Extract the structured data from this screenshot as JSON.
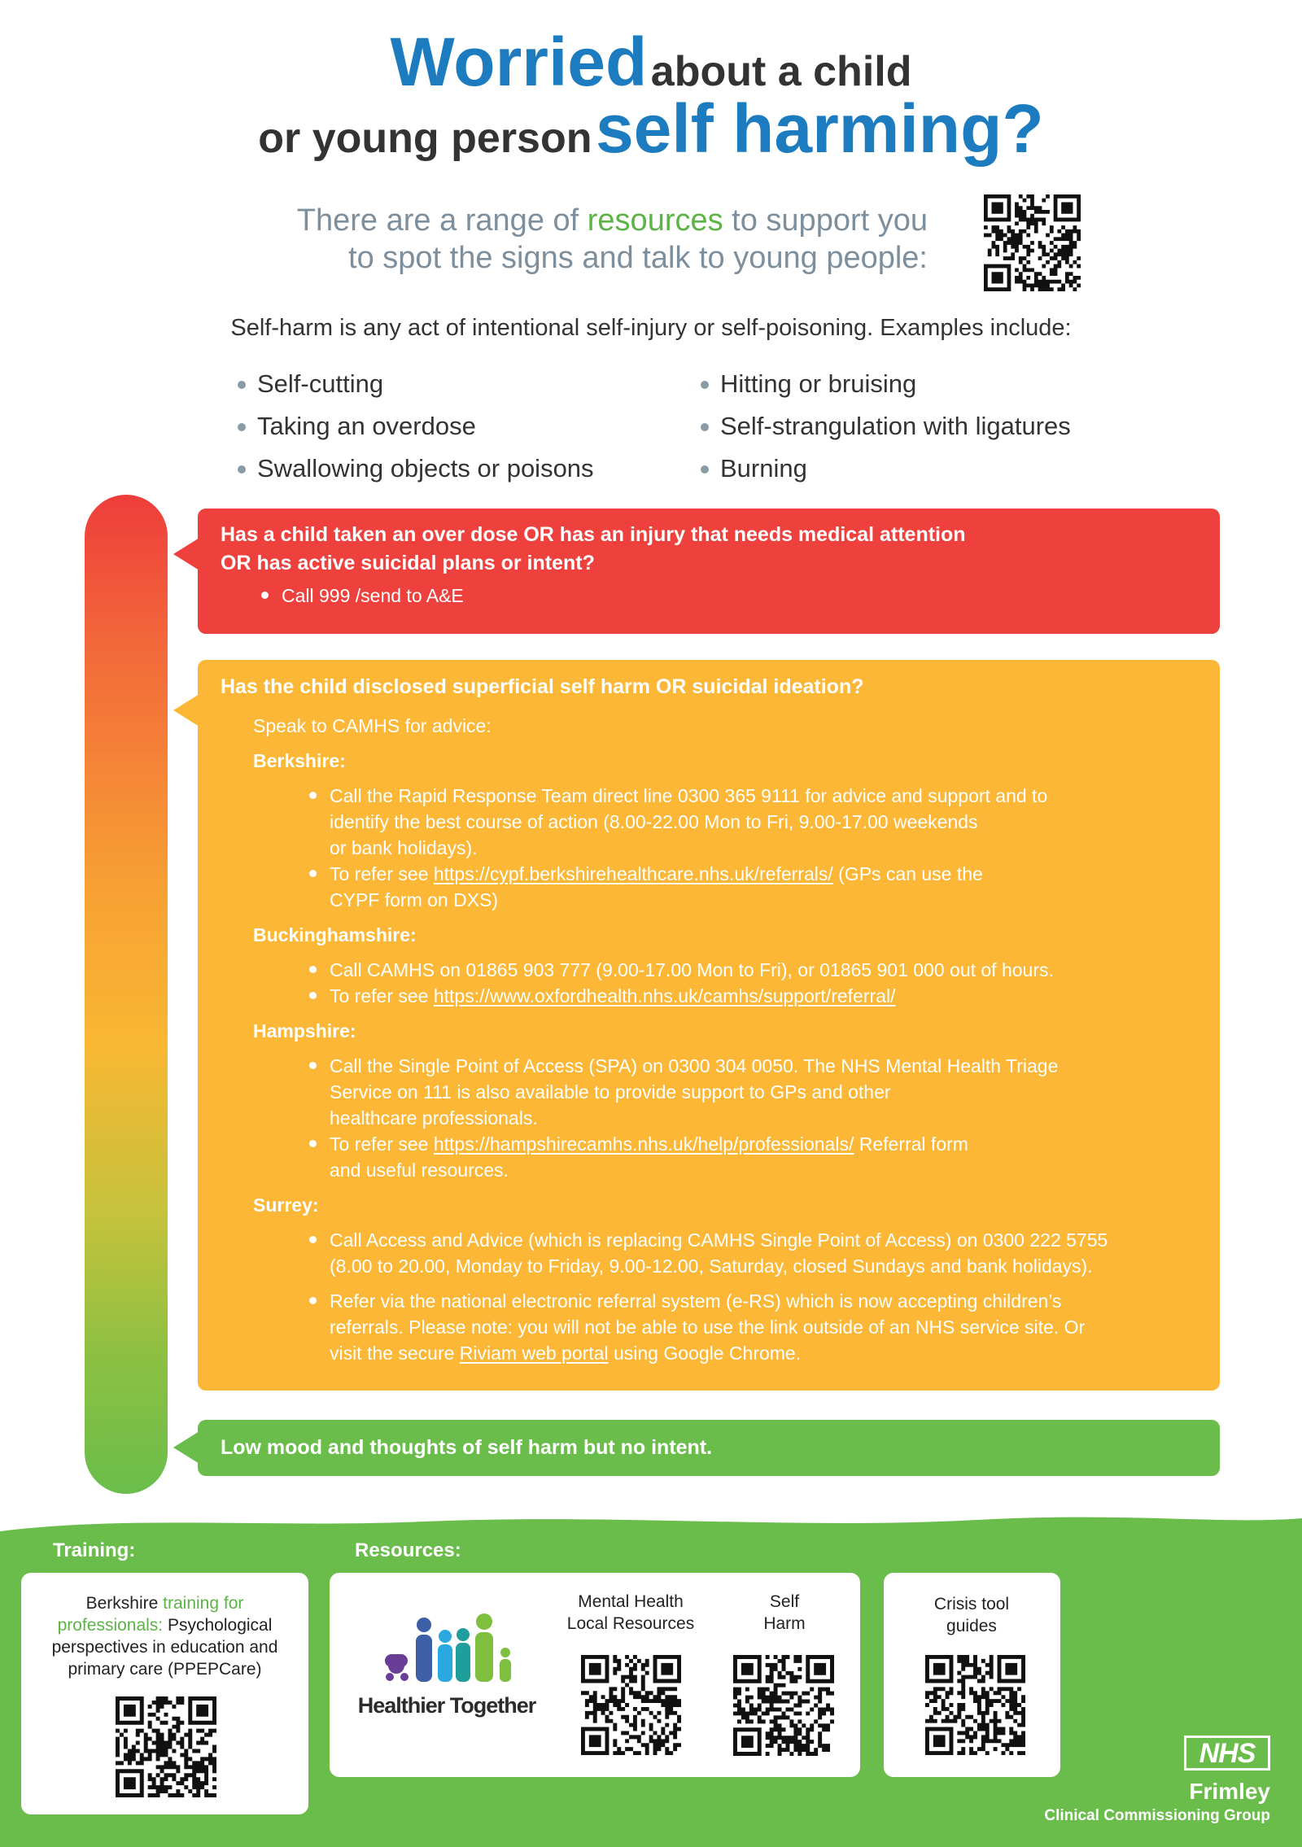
{
  "header": {
    "worried": "Worried",
    "about_a_child": "about a child",
    "or_young_person": "or young person",
    "self_harming": "self harming?"
  },
  "intro": {
    "text_before": "There are a range of",
    "resources": "resources",
    "text_after": "to support you",
    "line2": "to spot the signs and talk to young people:"
  },
  "definition": "Self-harm is any act of intentional self-injury or self-poisoning. Examples include:",
  "examples": [
    "Self-cutting",
    "Taking an overdose",
    "Swallowing objects or poisons",
    "Hitting or bruising",
    "Self-strangulation with ligatures",
    "Burning"
  ],
  "urgent": {
    "question": [
      "Has a child taken an over dose OR has an injury that needs medical attention",
      "OR has active suicidal plans or intent?"
    ],
    "actions": [
      "Call 999 /send to A&E"
    ]
  },
  "moderate": {
    "question": "Has the child disclosed superficial self harm OR suicidal ideation?",
    "lead": "Speak to CAMHS for advice:",
    "regions": [
      {
        "name": "Berkshire:",
        "items": [
          [
            "Call the Rapid Response Team direct line 0300 365 9111 for advice and support and to",
            "identify the best course of action (8.00-22.00 Mon to Fri, 9.00-17.00 weekends",
            "or bank holidays)."
          ],
          [
            {
              "before": "To refer see",
              "link": "https://cypf.berkshirehealthcare.nhs.uk/referrals/",
              "after": "(GPs can use the"
            },
            "CYPF form on DXS)"
          ]
        ]
      },
      {
        "name": "Buckinghamshire:",
        "items": [
          [
            "Call CAMHS on 01865 903 777 (9.00-17.00 Mon to Fri), or 01865 901 000 out of hours."
          ],
          [
            {
              "before": "To refer see",
              "link": "https://www.oxfordhealth.nhs.uk/camhs/support/referral/"
            }
          ]
        ]
      },
      {
        "name": "Hampshire:",
        "items": [
          [
            "Call the Single Point of Access (SPA) on 0300 304 0050. The NHS Mental Health Triage",
            "Service on 111 is also available to provide support to GPs and other",
            "healthcare professionals."
          ],
          [
            {
              "before": "To refer see",
              "link": "https://hampshirecamhs.nhs.uk/help/professionals/",
              "after": "Referral form"
            },
            "and useful resources."
          ]
        ]
      },
      {
        "name": "Surrey:",
        "items": [
          [
            "Call Access and Advice (which is replacing CAMHS Single Point of Access) on 0300 222 5755",
            "(8.00 to 20.00, Monday to Friday, 9.00-12.00, Saturday, closed Sundays and bank holidays)."
          ],
          [
            "Refer via the national electronic referral system (e-RS) which is now accepting children’s",
            "referrals. Please note: you will not be able to use the link outside of an NHS service site. Or",
            {
              "before": "visit the secure",
              "link": "Riviam web portal",
              "after": "using Google Chrome."
            }
          ]
        ]
      }
    ]
  },
  "low": {
    "question": "Low mood and thoughts of self harm but no intent."
  },
  "training": {
    "label": "Training:",
    "text_before": "Berkshire",
    "link": "training for professionals:",
    "text_after": "Psychological perspectives in education and primary care (PPEPCare)"
  },
  "resources": {
    "label": "Resources:",
    "logo": "Healthier Together",
    "items": [
      "Mental Health Local Resources",
      "Self Harm"
    ]
  },
  "crisis": {
    "label": "Crisis tool guides"
  },
  "nhs": {
    "logo": "NHS",
    "name": "Frimley",
    "org": "Clinical Commissioning Group"
  }
}
